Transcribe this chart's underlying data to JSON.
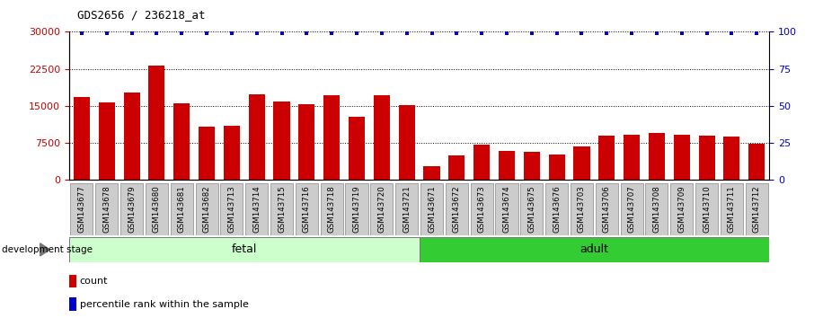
{
  "title": "GDS2656 / 236218_at",
  "categories": [
    "GSM143677",
    "GSM143678",
    "GSM143679",
    "GSM143680",
    "GSM143681",
    "GSM143682",
    "GSM143713",
    "GSM143714",
    "GSM143715",
    "GSM143716",
    "GSM143718",
    "GSM143719",
    "GSM143720",
    "GSM143721",
    "GSM143671",
    "GSM143672",
    "GSM143673",
    "GSM143674",
    "GSM143675",
    "GSM143676",
    "GSM143703",
    "GSM143706",
    "GSM143707",
    "GSM143708",
    "GSM143709",
    "GSM143710",
    "GSM143711",
    "GSM143712"
  ],
  "counts": [
    16700,
    15700,
    17700,
    23200,
    15500,
    10700,
    11000,
    17400,
    15800,
    15400,
    17100,
    12700,
    17100,
    15100,
    2700,
    4900,
    7100,
    5900,
    5700,
    5100,
    6800,
    8900,
    9100,
    9400,
    9100,
    9000,
    8700,
    7300
  ],
  "percentile_ranks": [
    99,
    99,
    99,
    99,
    99,
    99,
    99,
    99,
    99,
    99,
    99,
    99,
    99,
    99,
    99,
    99,
    99,
    99,
    99,
    99,
    99,
    99,
    99,
    99,
    99,
    99,
    99,
    99
  ],
  "fetal_count": 14,
  "adult_count": 14,
  "bar_color": "#cc0000",
  "percentile_color": "#0000cc",
  "fetal_bg": "#ccffcc",
  "adult_bg": "#33cc33",
  "tick_bg": "#cccccc",
  "ylim_left": [
    0,
    30000
  ],
  "ylim_right": [
    0,
    100
  ],
  "yticks_left": [
    0,
    7500,
    15000,
    22500,
    30000
  ],
  "yticks_right": [
    0,
    25,
    50,
    75,
    100
  ]
}
